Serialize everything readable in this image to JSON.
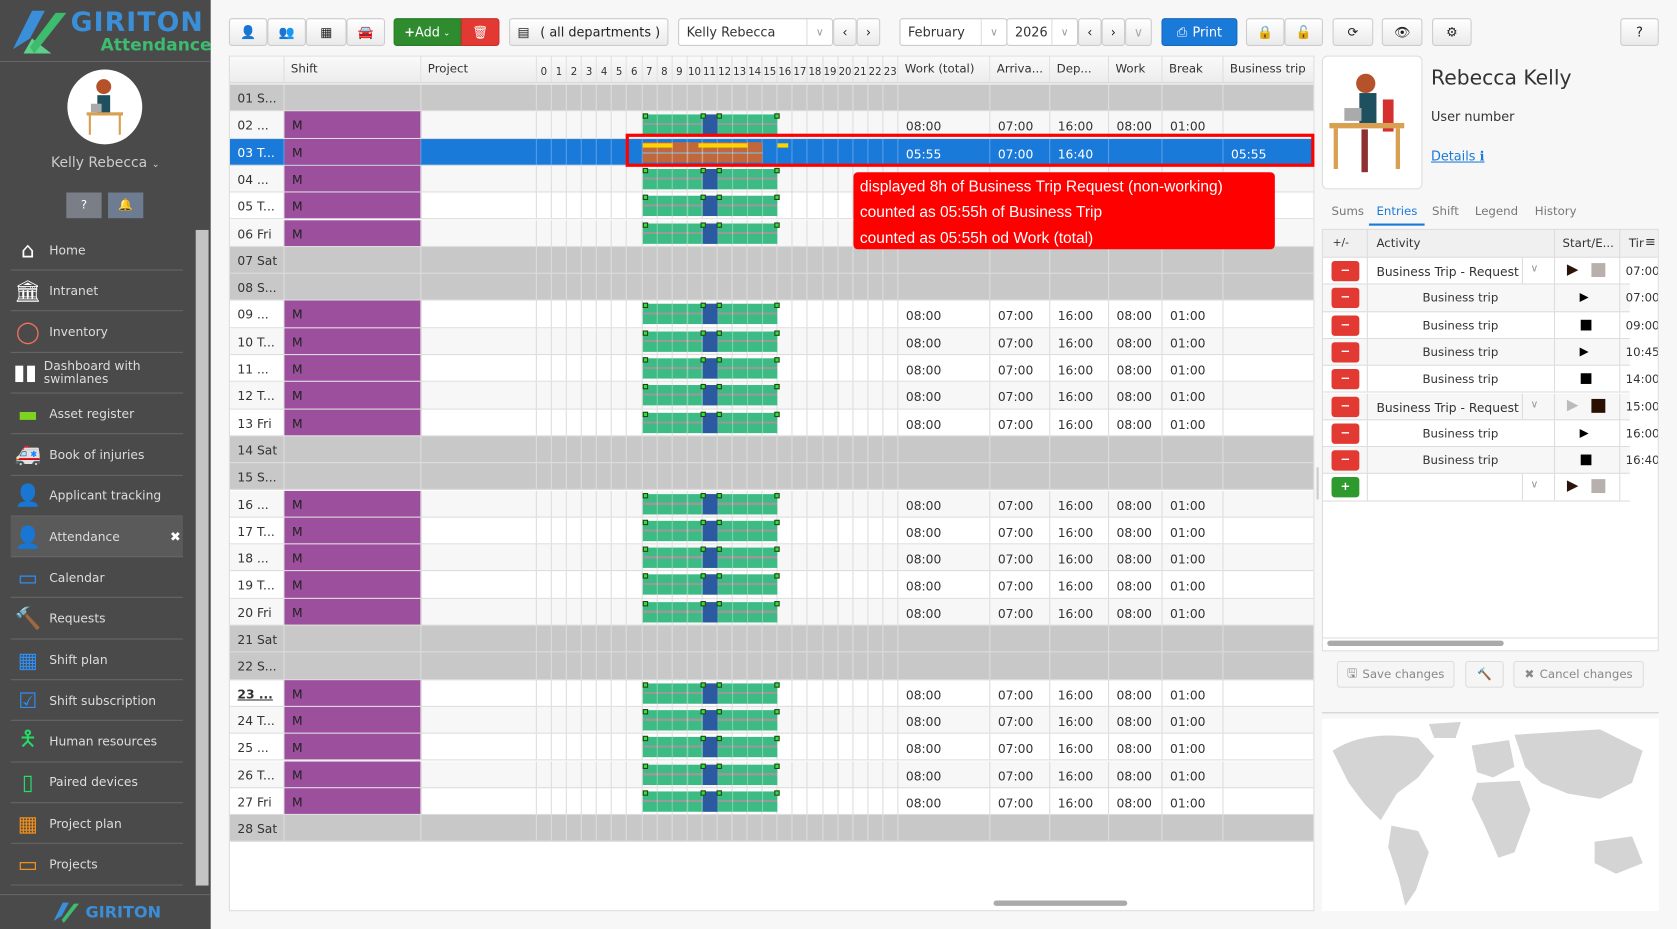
{
  "app": {
    "brand": "GIRITON",
    "product": "Attendance",
    "footer_brand": "GIRITON"
  },
  "user": {
    "name": "Kelly Rebecca"
  },
  "sidebar": {
    "items": [
      {
        "label": "Home",
        "icon": "home-icon",
        "color": "#ffffff",
        "glyph": "⌂"
      },
      {
        "label": "Intranet",
        "icon": "bank-icon",
        "color": "#ffffff",
        "glyph": "🏛"
      },
      {
        "label": "Inventory",
        "icon": "circle-icon",
        "color": "#f07060",
        "glyph": "◯"
      },
      {
        "label": "Dashboard with swimlanes",
        "icon": "columns-icon",
        "color": "#ffffff",
        "glyph": "▮▮"
      },
      {
        "label": "Asset register",
        "icon": "archive-icon",
        "color": "#7ed321",
        "glyph": "▬"
      },
      {
        "label": "Book of injuries",
        "icon": "ambulance-icon",
        "color": "#ff2020",
        "glyph": "🚑"
      },
      {
        "label": "Applicant tracking",
        "icon": "user-plus-icon",
        "color": "#3cb878",
        "glyph": "👤"
      },
      {
        "label": "Attendance",
        "icon": "user-icon",
        "color": "#2f8ef0",
        "glyph": "👤",
        "active": true
      },
      {
        "label": "Calendar",
        "icon": "calendar-icon",
        "color": "#2f8ef0",
        "glyph": "▭"
      },
      {
        "label": "Requests",
        "icon": "gavel-icon",
        "color": "#2f8ef0",
        "glyph": "🔨"
      },
      {
        "label": "Shift plan",
        "icon": "calendar-grid-icon",
        "color": "#2f8ef0",
        "glyph": "▦"
      },
      {
        "label": "Shift subscription",
        "icon": "calendar-check-icon",
        "color": "#2f8ef0",
        "glyph": "☑"
      },
      {
        "label": "Human resources",
        "icon": "person-icon",
        "color": "#22dd66",
        "glyph": "🯅"
      },
      {
        "label": "Paired devices",
        "icon": "mobile-icon",
        "color": "#22dd66",
        "glyph": "▯"
      },
      {
        "label": "Project plan",
        "icon": "calendar-grid-icon",
        "color": "#f0901a",
        "glyph": "▦"
      },
      {
        "label": "Projects",
        "icon": "calendar-icon",
        "color": "#f0901a",
        "glyph": "▭"
      }
    ]
  },
  "toolbar": {
    "add": "Add",
    "department": "( all departments )",
    "employee": "Kelly Rebecca",
    "month": "February",
    "year": "2026",
    "print": "Print"
  },
  "table": {
    "headers": {
      "shift": "Shift",
      "project": "Project",
      "work_total": "Work (total)",
      "arrival": "Arriva...",
      "departure": "Dep...",
      "work": "Work",
      "break": "Break",
      "business_trip": "Business trip"
    },
    "hours": [
      "0",
      "1",
      "2",
      "3",
      "4",
      "5",
      "6",
      "7",
      "8",
      "9",
      "10",
      "11",
      "12",
      "13",
      "14",
      "15",
      "16",
      "17",
      "18",
      "19",
      "20",
      "21",
      "22",
      "23"
    ],
    "rows": [
      {
        "date": "01 S...",
        "weekend": true
      },
      {
        "date": "02 ...",
        "shift": "M",
        "work_total": "08:00",
        "arrival": "07:00",
        "departure": "16:00",
        "work": "08:00",
        "break": "01:00",
        "bar": "standard"
      },
      {
        "date": "03 T...",
        "shift": "M",
        "work_total": "05:55",
        "arrival": "07:00",
        "departure": "16:40",
        "business_trip": "05:55",
        "bar": "trip",
        "selected": true
      },
      {
        "date": "04 ...",
        "shift": "M",
        "bar": "standard"
      },
      {
        "date": "05 T...",
        "shift": "M",
        "bar": "standard"
      },
      {
        "date": "06 Fri",
        "shift": "M",
        "bar": "standard"
      },
      {
        "date": "07 Sat",
        "weekend": true
      },
      {
        "date": "08 S...",
        "weekend": true
      },
      {
        "date": "09 ...",
        "shift": "M",
        "work_total": "08:00",
        "arrival": "07:00",
        "departure": "16:00",
        "work": "08:00",
        "break": "01:00",
        "bar": "standard"
      },
      {
        "date": "10 T...",
        "shift": "M",
        "work_total": "08:00",
        "arrival": "07:00",
        "departure": "16:00",
        "work": "08:00",
        "break": "01:00",
        "bar": "standard"
      },
      {
        "date": "11 ...",
        "shift": "M",
        "work_total": "08:00",
        "arrival": "07:00",
        "departure": "16:00",
        "work": "08:00",
        "break": "01:00",
        "bar": "standard"
      },
      {
        "date": "12 T...",
        "shift": "M",
        "work_total": "08:00",
        "arrival": "07:00",
        "departure": "16:00",
        "work": "08:00",
        "break": "01:00",
        "bar": "standard"
      },
      {
        "date": "13 Fri",
        "shift": "M",
        "work_total": "08:00",
        "arrival": "07:00",
        "departure": "16:00",
        "work": "08:00",
        "break": "01:00",
        "bar": "standard"
      },
      {
        "date": "14 Sat",
        "weekend": true
      },
      {
        "date": "15 S...",
        "weekend": true
      },
      {
        "date": "16 ...",
        "shift": "M",
        "work_total": "08:00",
        "arrival": "07:00",
        "departure": "16:00",
        "work": "08:00",
        "break": "01:00",
        "bar": "standard"
      },
      {
        "date": "17 T...",
        "shift": "M",
        "work_total": "08:00",
        "arrival": "07:00",
        "departure": "16:00",
        "work": "08:00",
        "break": "01:00",
        "bar": "standard"
      },
      {
        "date": "18 ...",
        "shift": "M",
        "work_total": "08:00",
        "arrival": "07:00",
        "departure": "16:00",
        "work": "08:00",
        "break": "01:00",
        "bar": "standard"
      },
      {
        "date": "19 T...",
        "shift": "M",
        "work_total": "08:00",
        "arrival": "07:00",
        "departure": "16:00",
        "work": "08:00",
        "break": "01:00",
        "bar": "standard"
      },
      {
        "date": "20 Fri",
        "shift": "M",
        "work_total": "08:00",
        "arrival": "07:00",
        "departure": "16:00",
        "work": "08:00",
        "break": "01:00",
        "bar": "standard"
      },
      {
        "date": "21 Sat",
        "weekend": true
      },
      {
        "date": "22 S...",
        "weekend": true
      },
      {
        "date": "23 ...",
        "shift": "M",
        "work_total": "08:00",
        "arrival": "07:00",
        "departure": "16:00",
        "work": "08:00",
        "break": "01:00",
        "bar": "standard",
        "today": true
      },
      {
        "date": "24 T...",
        "shift": "M",
        "work_total": "08:00",
        "arrival": "07:00",
        "departure": "16:00",
        "work": "08:00",
        "break": "01:00",
        "bar": "standard"
      },
      {
        "date": "25 ...",
        "shift": "M",
        "work_total": "08:00",
        "arrival": "07:00",
        "departure": "16:00",
        "work": "08:00",
        "break": "01:00",
        "bar": "standard"
      },
      {
        "date": "26 T...",
        "shift": "M",
        "work_total": "08:00",
        "arrival": "07:00",
        "departure": "16:00",
        "work": "08:00",
        "break": "01:00",
        "bar": "standard"
      },
      {
        "date": "27 Fri",
        "shift": "M",
        "work_total": "08:00",
        "arrival": "07:00",
        "departure": "16:00",
        "work": "08:00",
        "break": "01:00",
        "bar": "standard"
      },
      {
        "date": "28 Sat",
        "weekend": true
      }
    ]
  },
  "tooltip": {
    "lines": [
      "displayed 8h of Business Trip  Request (non-working)",
      "counted as 05:55h of Business Trip",
      "counted as 05:55h od Work (total)"
    ]
  },
  "panel": {
    "name": "Rebecca Kelly",
    "user_number_label": "User number",
    "details": "Details",
    "tabs": [
      "Sums",
      "Entries",
      "Shift",
      "Legend",
      "History"
    ],
    "active_tab": "Entries",
    "grid_headers": {
      "pm": "+/-",
      "activity": "Activity",
      "start_end": "Start/E...",
      "time": "Tir"
    },
    "entries": [
      {
        "activity": "Business Trip - Request",
        "type": "request",
        "mark": "play-stop",
        "time": "07:00:"
      },
      {
        "activity": "Business trip",
        "mark": "play",
        "time": "07:00"
      },
      {
        "activity": "Business trip",
        "mark": "stop",
        "time": "09:00"
      },
      {
        "activity": "Business trip",
        "mark": "play",
        "time": "10:45"
      },
      {
        "activity": "Business trip",
        "mark": "stop",
        "time": "14:00"
      },
      {
        "activity": "Business Trip - Request",
        "type": "request",
        "mark": "stop-active",
        "time": "15:00:"
      },
      {
        "activity": "Business trip",
        "mark": "play",
        "time": "16:00"
      },
      {
        "activity": "Business trip",
        "mark": "stop",
        "time": "16:40"
      }
    ],
    "save": "Save changes",
    "cancel": "Cancel changes"
  },
  "colors": {
    "accent": "#1a7ad9",
    "shift": "#9b4f9c",
    "work_bar": "#3dbb84",
    "break_bar": "#2b5aa0",
    "trip_bar": "#c0683c",
    "trip_marks": "#ffd400",
    "tooltip": "#ff0000"
  }
}
